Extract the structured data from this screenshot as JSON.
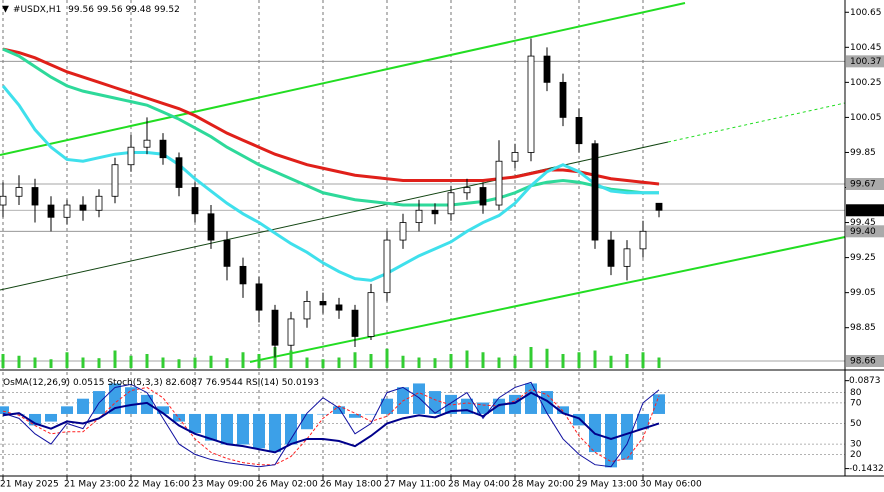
{
  "chart_data": [
    {
      "type": "candlestick",
      "title": "#USDX,H1",
      "categories": [
        "21 May 2025",
        null,
        null,
        null,
        "21 May 23:00",
        null,
        null,
        null,
        "22 May 16:00",
        null,
        null,
        null,
        "23 May 09:00",
        null,
        null,
        null,
        "26 May 02:00",
        null,
        null,
        null,
        "26 May 18:00",
        null,
        null,
        null,
        "27 May 11:00",
        null,
        null,
        null,
        "28 May 04:00",
        null,
        null,
        null,
        "28 May 20:00",
        null,
        null,
        null,
        "29 May 13:00",
        null,
        null,
        null,
        "30 May 06:00",
        null
      ],
      "open": [
        99.55,
        99.6,
        99.65,
        99.55,
        99.48,
        99.55,
        99.52,
        99.6,
        99.78,
        99.88,
        99.92,
        99.82,
        99.65,
        99.5,
        99.35,
        99.2,
        99.1,
        98.95,
        98.75,
        98.9,
        99.0,
        98.98,
        98.95,
        98.8,
        99.05,
        99.35,
        99.45,
        99.52,
        99.5,
        99.62,
        99.65,
        99.55,
        99.8,
        99.85,
        100.4,
        100.25,
        100.05,
        99.9,
        99.35,
        99.2,
        99.3,
        99.56
      ],
      "high": [
        99.68,
        99.72,
        99.7,
        99.6,
        99.58,
        99.6,
        99.64,
        99.82,
        99.95,
        100.05,
        99.96,
        99.85,
        99.68,
        99.55,
        99.4,
        99.25,
        99.14,
        98.98,
        98.94,
        99.06,
        99.05,
        99.02,
        98.98,
        99.1,
        99.4,
        99.5,
        99.58,
        99.56,
        99.66,
        99.7,
        99.68,
        99.92,
        99.9,
        100.5,
        100.45,
        100.3,
        100.1,
        99.92,
        99.4,
        99.35,
        99.46,
        99.56
      ],
      "low": [
        99.48,
        99.55,
        99.45,
        99.4,
        99.44,
        99.46,
        99.48,
        99.56,
        99.74,
        99.84,
        99.78,
        99.6,
        99.45,
        99.3,
        99.12,
        99.02,
        98.88,
        98.68,
        98.72,
        98.85,
        98.93,
        98.9,
        98.74,
        98.78,
        99.0,
        99.3,
        99.4,
        99.44,
        99.46,
        99.58,
        99.5,
        99.52,
        99.76,
        99.8,
        100.2,
        100.0,
        99.85,
        99.3,
        99.15,
        99.12,
        99.25,
        99.48
      ],
      "close": [
        99.6,
        99.65,
        99.55,
        99.48,
        99.55,
        99.52,
        99.6,
        99.78,
        99.88,
        99.92,
        99.82,
        99.65,
        99.5,
        99.35,
        99.2,
        99.1,
        98.95,
        98.75,
        98.9,
        99.0,
        98.98,
        98.95,
        98.8,
        99.05,
        99.35,
        99.45,
        99.52,
        99.5,
        99.62,
        99.65,
        99.55,
        99.8,
        99.85,
        100.4,
        100.25,
        100.05,
        99.9,
        99.35,
        99.2,
        99.3,
        99.4,
        99.52
      ],
      "series": [
        {
          "color": "#e0201a",
          "values": [
            100.44,
            100.42,
            100.39,
            100.35,
            100.31,
            100.28,
            100.25,
            100.22,
            100.19,
            100.16,
            100.13,
            100.1,
            100.06,
            100.01,
            99.96,
            99.92,
            99.88,
            99.84,
            99.81,
            99.78,
            99.76,
            99.74,
            99.72,
            99.71,
            99.7,
            99.69,
            99.69,
            99.69,
            99.69,
            99.69,
            99.69,
            99.7,
            99.71,
            99.73,
            99.75,
            99.75,
            99.74,
            99.72,
            99.7,
            99.69,
            99.68,
            99.67
          ]
        },
        {
          "color": "#2ed99a",
          "values": [
            100.44,
            100.4,
            100.34,
            100.28,
            100.23,
            100.2,
            100.18,
            100.16,
            100.14,
            100.12,
            100.08,
            100.04,
            99.99,
            99.94,
            99.88,
            99.83,
            99.78,
            99.74,
            99.7,
            99.66,
            99.62,
            99.6,
            99.58,
            99.57,
            99.56,
            99.55,
            99.55,
            99.55,
            99.55,
            99.56,
            99.57,
            99.59,
            99.62,
            99.66,
            99.68,
            99.69,
            99.68,
            99.66,
            99.64,
            99.63,
            99.62,
            99.62
          ]
        },
        {
          "color": "#3fe0ec",
          "values": [
            100.23,
            100.12,
            99.98,
            99.88,
            99.81,
            99.8,
            99.82,
            99.84,
            99.85,
            99.85,
            99.84,
            99.78,
            99.7,
            99.63,
            99.56,
            99.5,
            99.45,
            99.39,
            99.33,
            99.28,
            99.22,
            99.17,
            99.13,
            99.12,
            99.16,
            99.21,
            99.26,
            99.3,
            99.34,
            99.4,
            99.45,
            99.49,
            99.56,
            99.66,
            99.74,
            99.78,
            99.74,
            99.67,
            99.63,
            99.62,
            99.62,
            99.62
          ]
        }
      ],
      "volume": {
        "color": "#32cd32",
        "values": [
          40,
          35,
          30,
          25,
          45,
          30,
          28,
          50,
          35,
          40,
          30,
          25,
          30,
          35,
          28,
          45,
          40,
          60,
          50,
          30,
          25,
          30,
          45,
          40,
          55,
          35,
          30,
          28,
          40,
          50,
          45,
          30,
          35,
          60,
          55,
          40,
          45,
          50,
          35,
          40,
          45,
          30
        ]
      },
      "volume_ylim": [
        0,
        100
      ],
      "ylim": [
        98.62,
        100.72
      ],
      "yticks": [
        100.65,
        100.45,
        100.25,
        100.05,
        99.85,
        99.65,
        99.45,
        99.25,
        99.05,
        98.85
      ],
      "levels": [
        100.37,
        99.67,
        {
          "value": 99.4,
          "label": "99.40"
        },
        98.66
      ]
    },
    {
      "type": "oscillator",
      "osma": {
        "label": "OsMA(12,26,9)",
        "color": "#3ca0e8",
        "values": [
          0.02,
          0.0,
          -0.03,
          -0.02,
          0.02,
          0.04,
          0.06,
          0.08,
          0.07,
          0.05,
          0.02,
          -0.02,
          -0.05,
          -0.07,
          -0.08,
          -0.08,
          -0.09,
          -0.1,
          -0.08,
          -0.04,
          0.0,
          0.02,
          -0.01,
          0.0,
          0.04,
          0.07,
          0.08,
          0.06,
          0.05,
          0.04,
          0.03,
          0.04,
          0.05,
          0.08,
          0.06,
          0.02,
          -0.03,
          -0.1,
          -0.14,
          -0.12,
          -0.04,
          0.0515
        ]
      },
      "stoch": {
        "label": "Stoch(5,3,3)",
        "main": {
          "color": "#1010a0",
          "values": [
            60,
            55,
            40,
            30,
            50,
            45,
            70,
            85,
            88,
            80,
            55,
            30,
            20,
            15,
            12,
            10,
            8,
            10,
            35,
            60,
            75,
            65,
            40,
            50,
            80,
            85,
            75,
            60,
            70,
            80,
            55,
            75,
            85,
            90,
            60,
            35,
            20,
            10,
            8,
            30,
            70,
            82.6087
          ]
        },
        "signal": {
          "color": "#ff2020",
          "values": [
            62,
            58,
            48,
            40,
            42,
            42,
            55,
            70,
            82,
            85,
            75,
            55,
            35,
            22,
            16,
            12,
            10,
            10,
            18,
            35,
            55,
            67,
            60,
            52,
            57,
            72,
            80,
            73,
            68,
            70,
            68,
            67,
            72,
            83,
            78,
            62,
            38,
            22,
            13,
            16,
            36,
            76.9544
          ]
        }
      },
      "rsi": {
        "label": "RSI(14)",
        "color": "#00008b",
        "values": [
          58,
          60,
          50,
          45,
          52,
          50,
          55,
          65,
          68,
          70,
          60,
          48,
          40,
          35,
          30,
          28,
          25,
          22,
          30,
          35,
          35,
          33,
          28,
          38,
          50,
          55,
          58,
          56,
          62,
          63,
          57,
          68,
          70,
          80,
          72,
          60,
          55,
          40,
          35,
          40,
          45,
          50.0193
        ]
      },
      "ylim": [
        0,
        100
      ],
      "yticks": [
        80,
        70,
        50,
        30,
        20
      ],
      "osma_lim": [
        -0.16,
        0.11
      ],
      "osma_ticks": [
        0.0873,
        -0.1432
      ]
    }
  ]
}
